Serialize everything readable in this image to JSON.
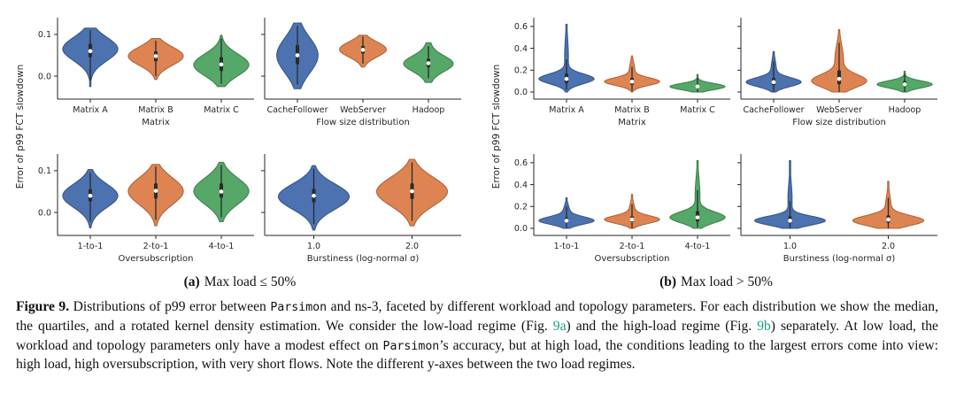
{
  "palette": {
    "blue": {
      "fill": "#4C72B0",
      "edge": "#39578a"
    },
    "orange": {
      "fill": "#DD8452",
      "edge": "#b0653c"
    },
    "green": {
      "fill": "#55A868",
      "edge": "#40804f"
    },
    "box": "#2b2b2b",
    "axis": "#262626",
    "link": "#1b9e86"
  },
  "figure": {
    "caption_segments": [
      {
        "text": "Figure 9.",
        "style": "bold"
      },
      {
        "text": " Distributions of p99 error between ",
        "style": "normal"
      },
      {
        "text": "Parsimon",
        "style": "mono"
      },
      {
        "text": " and ns-3, faceted by different workload and topology parameters. For each distribution we show the median, the quartiles, and a rotated kernel density estimation. We consider the low-load regime (Fig. ",
        "style": "normal"
      },
      {
        "text": "9a",
        "style": "link"
      },
      {
        "text": ") and the high-load regime (Fig. ",
        "style": "normal"
      },
      {
        "text": "9b",
        "style": "link"
      },
      {
        "text": ") separately. At low load, the workload and topology parameters only have a modest effect on ",
        "style": "normal"
      },
      {
        "text": "Parsimon",
        "style": "mono"
      },
      {
        "text": "’s accuracy, but at high load, the conditions leading to the largest errors come into view: high load, high oversubscription, with very short flows. Note the different y-axes between the two load regimes.",
        "style": "normal"
      }
    ]
  },
  "chart_data": [
    {
      "type": "violin",
      "caption_label": "(a)",
      "caption_text": "Max load ≤ 50%",
      "ylabel": "Error of p99 FCT slowdown",
      "ylim": [
        -0.055,
        0.14
      ],
      "yticks": [
        0.0,
        0.1
      ],
      "panels": [
        {
          "xlabel": "Matrix",
          "categories": [
            "Matrix A",
            "Matrix B",
            "Matrix C"
          ],
          "violins": [
            {
              "color": "blue",
              "range": [
                -0.025,
                0.115
              ],
              "peak": 0.065,
              "sigma": 0.028,
              "median": 0.06,
              "q1": 0.045,
              "q3": 0.078,
              "whiskers": [
                -0.01,
                0.11
              ]
            },
            {
              "color": "orange",
              "range": [
                -0.008,
                0.09
              ],
              "peak": 0.048,
              "sigma": 0.022,
              "median": 0.048,
              "q1": 0.035,
              "q3": 0.06,
              "whiskers": [
                0.0,
                0.085
              ]
            },
            {
              "color": "green",
              "range": [
                -0.025,
                0.098
              ],
              "peak": 0.027,
              "sigma": 0.026,
              "median": 0.028,
              "q1": 0.012,
              "q3": 0.046,
              "whiskers": [
                -0.018,
                0.09
              ]
            }
          ]
        },
        {
          "xlabel": "Flow size distribution",
          "categories": [
            "CacheFollower",
            "WebServer",
            "Hadoop"
          ],
          "violins": [
            {
              "color": "blue",
              "wscale": 0.75,
              "range": [
                -0.03,
                0.127
              ],
              "peak": 0.05,
              "sigma": 0.042,
              "median": 0.05,
              "q1": 0.028,
              "q3": 0.075,
              "whiskers": [
                -0.02,
                0.12
              ]
            },
            {
              "color": "orange",
              "wscale": 0.85,
              "range": [
                0.022,
                0.098
              ],
              "peak": 0.064,
              "sigma": 0.018,
              "median": 0.063,
              "q1": 0.054,
              "q3": 0.073,
              "whiskers": [
                0.03,
                0.095
              ]
            },
            {
              "color": "green",
              "wscale": 0.9,
              "range": [
                -0.015,
                0.08
              ],
              "peak": 0.03,
              "sigma": 0.018,
              "tail": {
                "mu": 0.03,
                "sigma": 0.04,
                "w": 0.22
              },
              "median": 0.031,
              "q1": 0.021,
              "q3": 0.042,
              "whiskers": [
                -0.005,
                0.072
              ]
            }
          ]
        },
        {
          "xlabel": "Oversubscription",
          "categories": [
            "1-to-1",
            "2-to-1",
            "4-to-1"
          ],
          "violins": [
            {
              "color": "blue",
              "range": [
                -0.037,
                0.103
              ],
              "peak": 0.04,
              "sigma": 0.028,
              "median": 0.04,
              "q1": 0.026,
              "q3": 0.056,
              "whiskers": [
                -0.022,
                0.095
              ]
            },
            {
              "color": "orange",
              "range": [
                -0.032,
                0.115
              ],
              "peak": 0.051,
              "sigma": 0.032,
              "median": 0.052,
              "q1": 0.033,
              "q3": 0.07,
              "whiskers": [
                -0.018,
                0.11
              ]
            },
            {
              "color": "green",
              "range": [
                -0.022,
                0.12
              ],
              "peak": 0.051,
              "sigma": 0.031,
              "median": 0.05,
              "q1": 0.035,
              "q3": 0.07,
              "whiskers": [
                -0.012,
                0.113
              ]
            }
          ]
        },
        {
          "xlabel": "Burstiness (log-normal σ)",
          "categories": [
            "1.0",
            "2.0"
          ],
          "violins": [
            {
              "color": "blue",
              "range": [
                -0.042,
                0.112
              ],
              "peak": 0.038,
              "sigma": 0.03,
              "median": 0.04,
              "q1": 0.024,
              "q3": 0.057,
              "whiskers": [
                -0.028,
                0.105
              ]
            },
            {
              "color": "orange",
              "range": [
                -0.032,
                0.127
              ],
              "peak": 0.05,
              "sigma": 0.034,
              "median": 0.051,
              "q1": 0.032,
              "q3": 0.07,
              "whiskers": [
                -0.02,
                0.12
              ]
            }
          ]
        }
      ]
    },
    {
      "type": "violin",
      "caption_label": "(b)",
      "caption_text": "Max load > 50%",
      "ylabel": "Error of p99 FCT slowdown",
      "ylim": [
        -0.065,
        0.68
      ],
      "yticks": [
        0.0,
        0.2,
        0.4,
        0.6
      ],
      "panels": [
        {
          "xlabel": "Matrix",
          "categories": [
            "Matrix A",
            "Matrix B",
            "Matrix C"
          ],
          "violins": [
            {
              "color": "blue",
              "range": [
                0.0,
                0.62
              ],
              "peak": 0.12,
              "sigma": 0.045,
              "tail": {
                "mu": 0.32,
                "sigma": 0.17,
                "w": 0.07
              },
              "median": 0.12,
              "q1": 0.08,
              "q3": 0.17,
              "whiskers": [
                0.02,
                0.3
              ]
            },
            {
              "color": "orange",
              "range": [
                0.0,
                0.33
              ],
              "peak": 0.095,
              "sigma": 0.035,
              "tail": {
                "mu": 0.2,
                "sigma": 0.07,
                "w": 0.1
              },
              "median": 0.095,
              "q1": 0.065,
              "q3": 0.13,
              "whiskers": [
                0.01,
                0.23
              ]
            },
            {
              "color": "green",
              "range": [
                0.0,
                0.16
              ],
              "peak": 0.05,
              "sigma": 0.028,
              "median": 0.05,
              "q1": 0.032,
              "q3": 0.07,
              "whiskers": [
                0.0,
                0.13
              ]
            }
          ]
        },
        {
          "xlabel": "Flow size distribution",
          "categories": [
            "CacheFollower",
            "WebServer",
            "Hadoop"
          ],
          "violins": [
            {
              "color": "blue",
              "range": [
                0.0,
                0.37
              ],
              "peak": 0.09,
              "sigma": 0.04,
              "tail": {
                "mu": 0.2,
                "sigma": 0.09,
                "w": 0.1
              },
              "median": 0.09,
              "q1": 0.06,
              "q3": 0.13,
              "whiskers": [
                0.0,
                0.28
              ]
            },
            {
              "color": "orange",
              "range": [
                0.0,
                0.57
              ],
              "peak": 0.1,
              "sigma": 0.06,
              "tail": {
                "mu": 0.3,
                "sigma": 0.13,
                "w": 0.16
              },
              "median": 0.12,
              "q1": 0.07,
              "q3": 0.2,
              "whiskers": [
                0.0,
                0.45
              ]
            },
            {
              "color": "green",
              "range": [
                0.0,
                0.19
              ],
              "peak": 0.07,
              "sigma": 0.032,
              "median": 0.07,
              "q1": 0.046,
              "q3": 0.1,
              "whiskers": [
                0.0,
                0.165
              ]
            }
          ]
        },
        {
          "xlabel": "Oversubscription",
          "categories": [
            "1-to-1",
            "2-to-1",
            "4-to-1"
          ],
          "violins": [
            {
              "color": "blue",
              "range": [
                0.0,
                0.28
              ],
              "peak": 0.07,
              "sigma": 0.034,
              "tail": {
                "mu": 0.15,
                "sigma": 0.06,
                "w": 0.12
              },
              "median": 0.07,
              "q1": 0.047,
              "q3": 0.1,
              "whiskers": [
                0.0,
                0.2
              ]
            },
            {
              "color": "orange",
              "range": [
                0.0,
                0.31
              ],
              "peak": 0.08,
              "sigma": 0.035,
              "tail": {
                "mu": 0.17,
                "sigma": 0.06,
                "w": 0.1
              },
              "median": 0.08,
              "q1": 0.055,
              "q3": 0.11,
              "whiskers": [
                0.0,
                0.22
              ]
            },
            {
              "color": "green",
              "range": [
                0.0,
                0.62
              ],
              "peak": 0.1,
              "sigma": 0.05,
              "tail": {
                "mu": 0.3,
                "sigma": 0.16,
                "w": 0.09
              },
              "median": 0.1,
              "q1": 0.062,
              "q3": 0.16,
              "whiskers": [
                0.01,
                0.35
              ]
            }
          ]
        },
        {
          "xlabel": "Burstiness (log-normal σ)",
          "categories": [
            "1.0",
            "2.0"
          ],
          "violins": [
            {
              "color": "blue",
              "range": [
                0.0,
                0.62
              ],
              "peak": 0.07,
              "sigma": 0.04,
              "tail": {
                "mu": 0.26,
                "sigma": 0.15,
                "w": 0.06
              },
              "median": 0.07,
              "q1": 0.047,
              "q3": 0.11,
              "whiskers": [
                0.0,
                0.25
              ]
            },
            {
              "color": "orange",
              "range": [
                0.0,
                0.43
              ],
              "peak": 0.07,
              "sigma": 0.046,
              "tail": {
                "mu": 0.2,
                "sigma": 0.1,
                "w": 0.08
              },
              "median": 0.08,
              "q1": 0.05,
              "q3": 0.12,
              "whiskers": [
                0.0,
                0.28
              ]
            }
          ]
        }
      ]
    }
  ]
}
